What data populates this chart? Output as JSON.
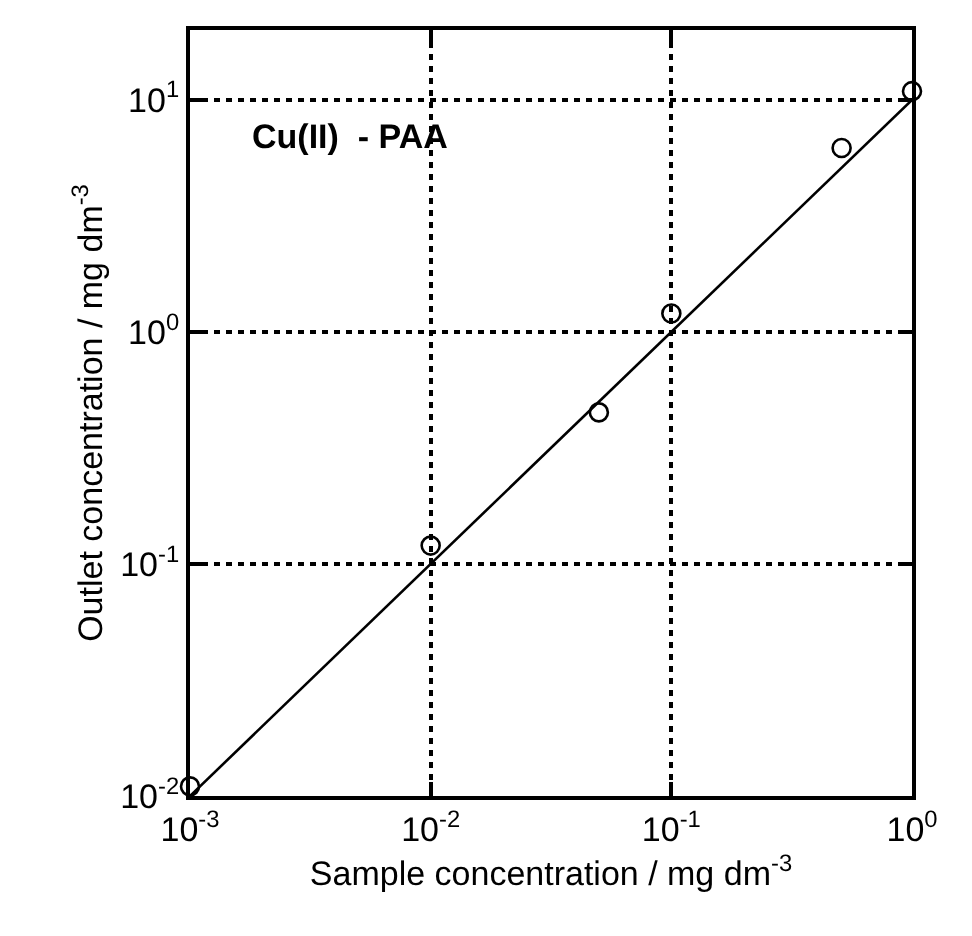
{
  "chart_data": {
    "type": "scatter",
    "xlabel": "Sample concentration / mg dm$^{-3}$",
    "ylabel": "Outlet concentration / mg dm$^{-3}$",
    "annotations": [
      "Cu(II)  - PAA"
    ],
    "log": "xy",
    "grid": true,
    "marker": "circle",
    "xlim": [
      0.001,
      1
    ],
    "ylim": [
      0.01,
      20
    ],
    "xticks": [
      {
        "value": 0.001,
        "label": "10$^{-3}$"
      },
      {
        "value": 0.01,
        "label": "10$^{-2}$"
      },
      {
        "value": 0.1,
        "label": "10$^{-1}$"
      },
      {
        "value": 1,
        "label": "10$^{0}$"
      }
    ],
    "yticks": [
      {
        "value": 0.01,
        "label": "10$^{-2}$"
      },
      {
        "value": 0.1,
        "label": "10$^{-1}$"
      },
      {
        "value": 1,
        "label": "10$^{0}$"
      },
      {
        "value": 10,
        "label": "10$^{1}$"
      }
    ],
    "series": [
      {
        "color": "#000000",
        "x": [
          0.001,
          0.01,
          0.05,
          0.1,
          0.51,
          1.0
        ],
        "values": [
          0.011,
          0.12,
          0.45,
          1.2,
          6.2,
          10.9
        ]
      },
      {
        "type": "line",
        "color": "#000000",
        "marker": "none",
        "line_style": "solid",
        "x": [
          0.001,
          1
        ],
        "values": [
          0.01,
          10
        ]
      }
    ]
  }
}
